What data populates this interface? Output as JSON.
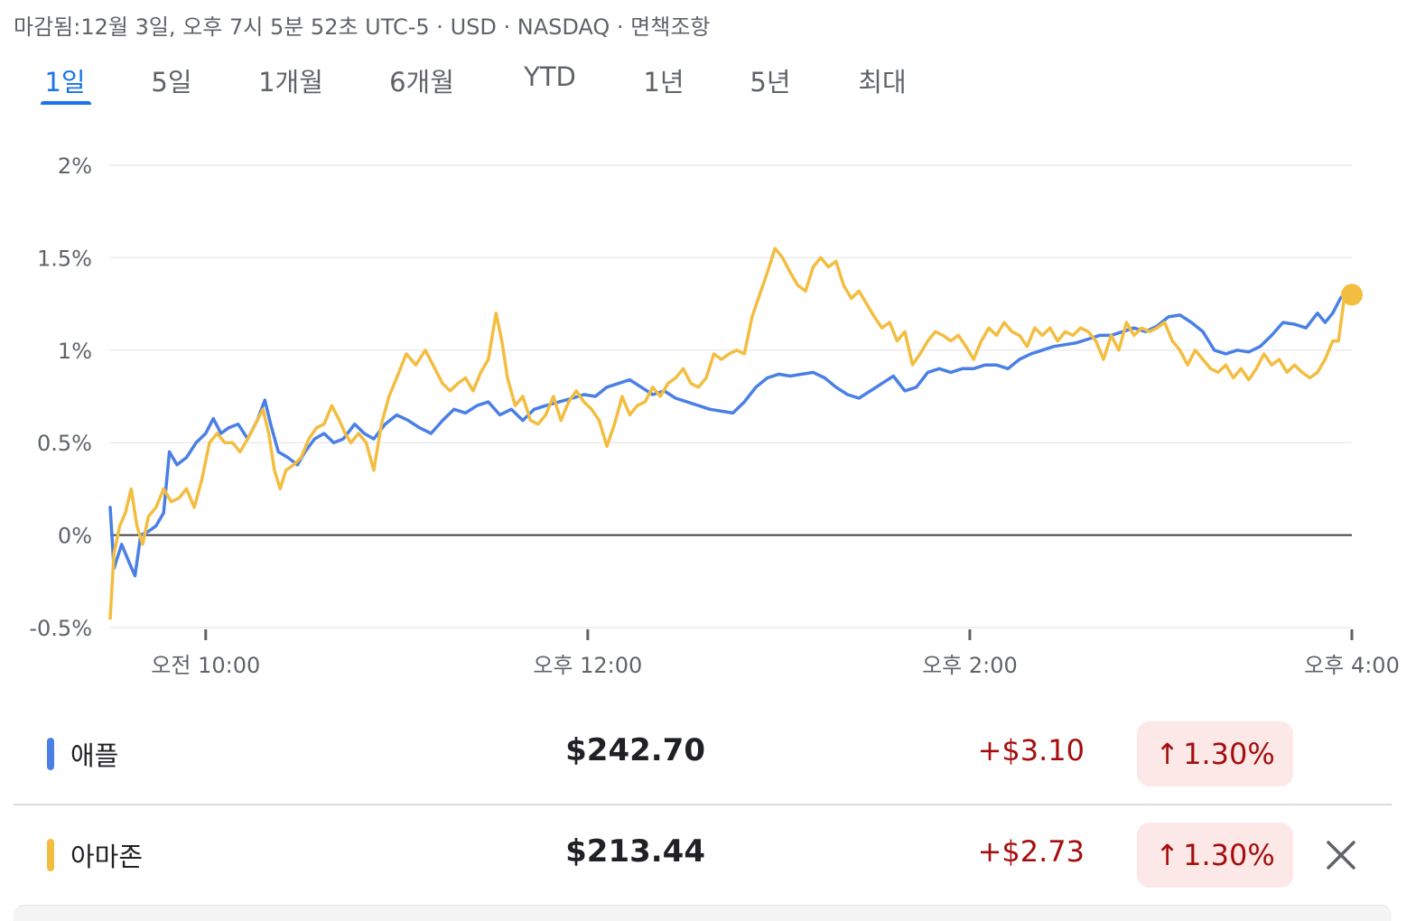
{
  "header": {
    "status": "마감됨:12월 3일, 오후 7시 5분 52초 UTC-5 · USD · NASDAQ · 면책조항"
  },
  "tabs": [
    {
      "label": "1일",
      "active": true
    },
    {
      "label": "5일",
      "active": false
    },
    {
      "label": "1개월",
      "active": false
    },
    {
      "label": "6개월",
      "active": false
    },
    {
      "label": "YTD",
      "active": false
    },
    {
      "label": "1년",
      "active": false
    },
    {
      "label": "5년",
      "active": false
    },
    {
      "label": "최대",
      "active": false
    }
  ],
  "chart_data": {
    "type": "line",
    "y_unit": "%",
    "ylim": [
      -0.5,
      2
    ],
    "y_ticks": [
      {
        "value": 2,
        "label": "2%"
      },
      {
        "value": 1.5,
        "label": "1.5%"
      },
      {
        "value": 1,
        "label": "1%"
      },
      {
        "value": 0.5,
        "label": "0.5%"
      },
      {
        "value": 0,
        "label": "0%"
      },
      {
        "value": -0.5,
        "label": "-0.5%"
      }
    ],
    "x_range_hours": [
      9.5,
      16
    ],
    "x_ticks": [
      {
        "value": 10,
        "label": "오전 10:00"
      },
      {
        "value": 12,
        "label": "오후 12:00"
      },
      {
        "value": 14,
        "label": "오후 2:00"
      },
      {
        "value": 16,
        "label": "오후 4:00"
      }
    ],
    "baseline": 0,
    "grid": true,
    "series": [
      {
        "name": "애플",
        "color": "#4a7fe6",
        "points": [
          [
            9.5,
            0.15
          ],
          [
            9.52,
            -0.18
          ],
          [
            9.56,
            -0.05
          ],
          [
            9.6,
            -0.15
          ],
          [
            9.63,
            -0.22
          ],
          [
            9.66,
            0.0
          ],
          [
            9.7,
            0.02
          ],
          [
            9.74,
            0.05
          ],
          [
            9.78,
            0.12
          ],
          [
            9.81,
            0.45
          ],
          [
            9.85,
            0.38
          ],
          [
            9.9,
            0.42
          ],
          [
            9.95,
            0.5
          ],
          [
            10.0,
            0.55
          ],
          [
            10.04,
            0.63
          ],
          [
            10.08,
            0.55
          ],
          [
            10.12,
            0.58
          ],
          [
            10.17,
            0.6
          ],
          [
            10.22,
            0.52
          ],
          [
            10.27,
            0.62
          ],
          [
            10.31,
            0.73
          ],
          [
            10.34,
            0.6
          ],
          [
            10.38,
            0.45
          ],
          [
            10.43,
            0.42
          ],
          [
            10.48,
            0.38
          ],
          [
            10.52,
            0.45
          ],
          [
            10.57,
            0.52
          ],
          [
            10.62,
            0.55
          ],
          [
            10.67,
            0.5
          ],
          [
            10.72,
            0.52
          ],
          [
            10.78,
            0.6
          ],
          [
            10.83,
            0.55
          ],
          [
            10.88,
            0.52
          ],
          [
            10.94,
            0.6
          ],
          [
            11.0,
            0.65
          ],
          [
            11.06,
            0.62
          ],
          [
            11.12,
            0.58
          ],
          [
            11.18,
            0.55
          ],
          [
            11.24,
            0.62
          ],
          [
            11.3,
            0.68
          ],
          [
            11.36,
            0.66
          ],
          [
            11.42,
            0.7
          ],
          [
            11.48,
            0.72
          ],
          [
            11.54,
            0.65
          ],
          [
            11.6,
            0.68
          ],
          [
            11.66,
            0.62
          ],
          [
            11.72,
            0.68
          ],
          [
            11.78,
            0.7
          ],
          [
            11.85,
            0.72
          ],
          [
            11.92,
            0.74
          ],
          [
            11.98,
            0.76
          ],
          [
            12.04,
            0.75
          ],
          [
            12.1,
            0.8
          ],
          [
            12.16,
            0.82
          ],
          [
            12.22,
            0.84
          ],
          [
            12.28,
            0.8
          ],
          [
            12.34,
            0.76
          ],
          [
            12.4,
            0.78
          ],
          [
            12.46,
            0.74
          ],
          [
            12.52,
            0.72
          ],
          [
            12.58,
            0.7
          ],
          [
            12.64,
            0.68
          ],
          [
            12.7,
            0.67
          ],
          [
            12.76,
            0.66
          ],
          [
            12.82,
            0.72
          ],
          [
            12.88,
            0.8
          ],
          [
            12.94,
            0.85
          ],
          [
            13.0,
            0.87
          ],
          [
            13.06,
            0.86
          ],
          [
            13.12,
            0.87
          ],
          [
            13.18,
            0.88
          ],
          [
            13.24,
            0.85
          ],
          [
            13.3,
            0.8
          ],
          [
            13.36,
            0.76
          ],
          [
            13.42,
            0.74
          ],
          [
            13.48,
            0.78
          ],
          [
            13.54,
            0.82
          ],
          [
            13.6,
            0.86
          ],
          [
            13.66,
            0.78
          ],
          [
            13.72,
            0.8
          ],
          [
            13.78,
            0.88
          ],
          [
            13.84,
            0.9
          ],
          [
            13.9,
            0.88
          ],
          [
            13.96,
            0.9
          ],
          [
            14.02,
            0.9
          ],
          [
            14.08,
            0.92
          ],
          [
            14.14,
            0.92
          ],
          [
            14.2,
            0.9
          ],
          [
            14.26,
            0.95
          ],
          [
            14.32,
            0.98
          ],
          [
            14.38,
            1.0
          ],
          [
            14.44,
            1.02
          ],
          [
            14.5,
            1.03
          ],
          [
            14.56,
            1.04
          ],
          [
            14.62,
            1.06
          ],
          [
            14.68,
            1.08
          ],
          [
            14.74,
            1.08
          ],
          [
            14.8,
            1.1
          ],
          [
            14.86,
            1.12
          ],
          [
            14.92,
            1.1
          ],
          [
            14.98,
            1.13
          ],
          [
            15.04,
            1.18
          ],
          [
            15.1,
            1.19
          ],
          [
            15.16,
            1.15
          ],
          [
            15.22,
            1.1
          ],
          [
            15.28,
            1.0
          ],
          [
            15.34,
            0.98
          ],
          [
            15.4,
            1.0
          ],
          [
            15.46,
            0.99
          ],
          [
            15.52,
            1.02
          ],
          [
            15.58,
            1.08
          ],
          [
            15.64,
            1.15
          ],
          [
            15.7,
            1.14
          ],
          [
            15.76,
            1.12
          ],
          [
            15.82,
            1.2
          ],
          [
            15.86,
            1.15
          ],
          [
            15.9,
            1.2
          ],
          [
            15.94,
            1.28
          ],
          [
            15.97,
            1.32
          ],
          [
            16.0,
            1.3
          ]
        ]
      },
      {
        "name": "아마존",
        "color": "#f3bd40",
        "points": [
          [
            9.5,
            -0.45
          ],
          [
            9.52,
            -0.1
          ],
          [
            9.55,
            0.05
          ],
          [
            9.58,
            0.12
          ],
          [
            9.61,
            0.25
          ],
          [
            9.64,
            0.05
          ],
          [
            9.67,
            -0.05
          ],
          [
            9.7,
            0.1
          ],
          [
            9.74,
            0.15
          ],
          [
            9.78,
            0.25
          ],
          [
            9.82,
            0.18
          ],
          [
            9.86,
            0.2
          ],
          [
            9.9,
            0.25
          ],
          [
            9.94,
            0.15
          ],
          [
            9.98,
            0.3
          ],
          [
            10.02,
            0.5
          ],
          [
            10.06,
            0.55
          ],
          [
            10.1,
            0.5
          ],
          [
            10.14,
            0.5
          ],
          [
            10.18,
            0.45
          ],
          [
            10.22,
            0.52
          ],
          [
            10.26,
            0.6
          ],
          [
            10.3,
            0.68
          ],
          [
            10.33,
            0.55
          ],
          [
            10.36,
            0.35
          ],
          [
            10.39,
            0.25
          ],
          [
            10.42,
            0.35
          ],
          [
            10.46,
            0.38
          ],
          [
            10.5,
            0.42
          ],
          [
            10.54,
            0.52
          ],
          [
            10.58,
            0.58
          ],
          [
            10.62,
            0.6
          ],
          [
            10.66,
            0.7
          ],
          [
            10.7,
            0.62
          ],
          [
            10.73,
            0.55
          ],
          [
            10.76,
            0.5
          ],
          [
            10.8,
            0.55
          ],
          [
            10.84,
            0.5
          ],
          [
            10.88,
            0.35
          ],
          [
            10.92,
            0.6
          ],
          [
            10.96,
            0.75
          ],
          [
            11.0,
            0.85
          ],
          [
            11.05,
            0.98
          ],
          [
            11.1,
            0.92
          ],
          [
            11.15,
            1.0
          ],
          [
            11.2,
            0.9
          ],
          [
            11.24,
            0.82
          ],
          [
            11.28,
            0.78
          ],
          [
            11.32,
            0.82
          ],
          [
            11.36,
            0.85
          ],
          [
            11.4,
            0.78
          ],
          [
            11.44,
            0.88
          ],
          [
            11.48,
            0.95
          ],
          [
            11.52,
            1.2
          ],
          [
            11.55,
            1.05
          ],
          [
            11.58,
            0.85
          ],
          [
            11.62,
            0.7
          ],
          [
            11.66,
            0.75
          ],
          [
            11.7,
            0.62
          ],
          [
            11.74,
            0.6
          ],
          [
            11.78,
            0.65
          ],
          [
            11.82,
            0.75
          ],
          [
            11.86,
            0.62
          ],
          [
            11.9,
            0.72
          ],
          [
            11.94,
            0.78
          ],
          [
            11.98,
            0.72
          ],
          [
            12.02,
            0.68
          ],
          [
            12.06,
            0.62
          ],
          [
            12.1,
            0.48
          ],
          [
            12.14,
            0.6
          ],
          [
            12.18,
            0.75
          ],
          [
            12.22,
            0.65
          ],
          [
            12.26,
            0.7
          ],
          [
            12.3,
            0.72
          ],
          [
            12.34,
            0.8
          ],
          [
            12.38,
            0.75
          ],
          [
            12.42,
            0.82
          ],
          [
            12.46,
            0.85
          ],
          [
            12.5,
            0.9
          ],
          [
            12.54,
            0.82
          ],
          [
            12.58,
            0.8
          ],
          [
            12.62,
            0.85
          ],
          [
            12.66,
            0.98
          ],
          [
            12.7,
            0.95
          ],
          [
            12.74,
            0.98
          ],
          [
            12.78,
            1.0
          ],
          [
            12.82,
            0.98
          ],
          [
            12.86,
            1.18
          ],
          [
            12.9,
            1.3
          ],
          [
            12.94,
            1.42
          ],
          [
            12.98,
            1.55
          ],
          [
            13.02,
            1.5
          ],
          [
            13.06,
            1.42
          ],
          [
            13.1,
            1.35
          ],
          [
            13.14,
            1.32
          ],
          [
            13.18,
            1.45
          ],
          [
            13.22,
            1.5
          ],
          [
            13.26,
            1.45
          ],
          [
            13.3,
            1.48
          ],
          [
            13.34,
            1.35
          ],
          [
            13.38,
            1.28
          ],
          [
            13.42,
            1.32
          ],
          [
            13.46,
            1.25
          ],
          [
            13.5,
            1.18
          ],
          [
            13.54,
            1.12
          ],
          [
            13.58,
            1.15
          ],
          [
            13.62,
            1.05
          ],
          [
            13.66,
            1.1
          ],
          [
            13.7,
            0.92
          ],
          [
            13.74,
            0.98
          ],
          [
            13.78,
            1.05
          ],
          [
            13.82,
            1.1
          ],
          [
            13.86,
            1.08
          ],
          [
            13.9,
            1.05
          ],
          [
            13.94,
            1.08
          ],
          [
            13.98,
            1.02
          ],
          [
            14.02,
            0.95
          ],
          [
            14.06,
            1.05
          ],
          [
            14.1,
            1.12
          ],
          [
            14.14,
            1.08
          ],
          [
            14.18,
            1.15
          ],
          [
            14.22,
            1.1
          ],
          [
            14.26,
            1.08
          ],
          [
            14.3,
            1.02
          ],
          [
            14.34,
            1.12
          ],
          [
            14.38,
            1.08
          ],
          [
            14.42,
            1.12
          ],
          [
            14.46,
            1.05
          ],
          [
            14.5,
            1.1
          ],
          [
            14.54,
            1.08
          ],
          [
            14.58,
            1.12
          ],
          [
            14.62,
            1.1
          ],
          [
            14.66,
            1.05
          ],
          [
            14.7,
            0.95
          ],
          [
            14.74,
            1.08
          ],
          [
            14.78,
            1.0
          ],
          [
            14.82,
            1.15
          ],
          [
            14.86,
            1.08
          ],
          [
            14.9,
            1.12
          ],
          [
            14.94,
            1.1
          ],
          [
            14.98,
            1.12
          ],
          [
            15.02,
            1.15
          ],
          [
            15.06,
            1.05
          ],
          [
            15.1,
            1.0
          ],
          [
            15.14,
            0.92
          ],
          [
            15.18,
            1.0
          ],
          [
            15.22,
            0.95
          ],
          [
            15.26,
            0.9
          ],
          [
            15.3,
            0.88
          ],
          [
            15.34,
            0.92
          ],
          [
            15.38,
            0.85
          ],
          [
            15.42,
            0.9
          ],
          [
            15.46,
            0.84
          ],
          [
            15.5,
            0.9
          ],
          [
            15.54,
            0.98
          ],
          [
            15.58,
            0.92
          ],
          [
            15.62,
            0.95
          ],
          [
            15.66,
            0.88
          ],
          [
            15.7,
            0.92
          ],
          [
            15.74,
            0.88
          ],
          [
            15.78,
            0.85
          ],
          [
            15.82,
            0.88
          ],
          [
            15.86,
            0.95
          ],
          [
            15.9,
            1.05
          ],
          [
            15.93,
            1.05
          ],
          [
            15.96,
            1.28
          ],
          [
            16.0,
            1.3
          ]
        ]
      }
    ]
  },
  "legend": [
    {
      "name": "애플",
      "color": "#4a7fe6",
      "price": "$242.70",
      "change": "+$3.10",
      "arrow": "↑",
      "percent": "1.30%"
    },
    {
      "name": "아마존",
      "color": "#f3bd40",
      "price": "$213.44",
      "change": "+$2.73",
      "arrow": "↑",
      "percent": "1.30%",
      "removable": true,
      "remove_icon": "close-icon"
    }
  ]
}
